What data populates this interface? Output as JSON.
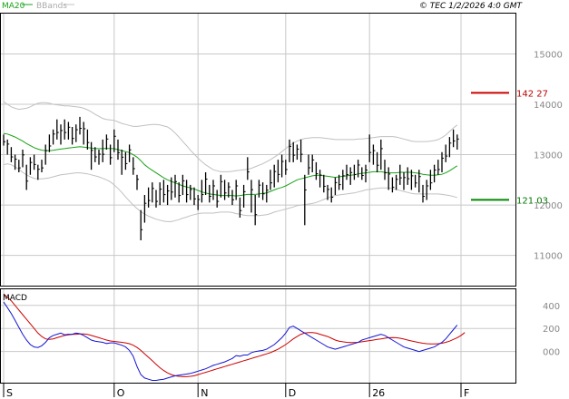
{
  "header": {
    "legend_ma": "MA20",
    "legend_bb": "BBands",
    "source": "© TEC 1/2/2026 4:0 GMT"
  },
  "colors": {
    "price": "#000000",
    "ma": "#17a317",
    "bbands": "#c0c0c0",
    "grid": "#c8c8c8",
    "resistance": "#cc0000",
    "support": "#008800",
    "macd": "#1414d2",
    "signal": "#cc0000",
    "axis_text": "#888888",
    "level_text_red": "#bb0000",
    "level_text_green": "#007700"
  },
  "macd_panel": {
    "title": "MACD"
  },
  "chart_data": [
    {
      "type": "line",
      "title": "",
      "x_tick_labels": [
        "S",
        "O",
        "N",
        "D",
        "26",
        "F"
      ],
      "x_tick_index": [
        0,
        29,
        51,
        74,
        96,
        120
      ],
      "y_ticks": [
        11000,
        12000,
        13000,
        14000,
        15000
      ],
      "y_tick_labels": [
        "11000",
        "12000",
        "13000",
        "14000",
        "15000"
      ],
      "ylim": [
        10400,
        15800
      ],
      "grid": true,
      "levels": [
        {
          "name": "resistance",
          "value": 14227,
          "label": "142 27"
        },
        {
          "name": "support",
          "value": 12103,
          "label": "121 03"
        }
      ],
      "ohlc": [
        [
          13400,
          13180
        ],
        [
          13300,
          13000
        ],
        [
          13150,
          12850
        ],
        [
          13000,
          12700
        ],
        [
          12900,
          12650
        ],
        [
          13100,
          12750
        ],
        [
          12800,
          12300
        ],
        [
          12950,
          12600
        ],
        [
          13000,
          12700
        ],
        [
          12800,
          12500
        ],
        [
          12900,
          12650
        ],
        [
          13200,
          12800
        ],
        [
          13400,
          13050
        ],
        [
          13500,
          13200
        ],
        [
          13700,
          13300
        ],
        [
          13600,
          13200
        ],
        [
          13700,
          13300
        ],
        [
          13650,
          13300
        ],
        [
          13550,
          13200
        ],
        [
          13600,
          13250
        ],
        [
          13750,
          13400
        ],
        [
          13650,
          13200
        ],
        [
          13500,
          13100
        ],
        [
          13250,
          12700
        ],
        [
          13150,
          12850
        ],
        [
          13100,
          12800
        ],
        [
          13300,
          12850
        ],
        [
          13400,
          13100
        ],
        [
          13200,
          12800
        ],
        [
          13500,
          13050
        ],
        [
          13300,
          12900
        ],
        [
          13100,
          12600
        ],
        [
          13050,
          12700
        ],
        [
          13200,
          12850
        ],
        [
          12950,
          12600
        ],
        [
          12600,
          12300
        ],
        [
          11900,
          11300
        ],
        [
          12200,
          11650
        ],
        [
          12350,
          11950
        ],
        [
          12450,
          12050
        ],
        [
          12300,
          11950
        ],
        [
          12450,
          12000
        ],
        [
          12500,
          12050
        ],
        [
          12400,
          12000
        ],
        [
          12550,
          12100
        ],
        [
          12600,
          12150
        ],
        [
          12450,
          12050
        ],
        [
          12600,
          12200
        ],
        [
          12500,
          12050
        ],
        [
          12400,
          12100
        ],
        [
          12350,
          12000
        ],
        [
          12200,
          11900
        ],
        [
          12500,
          12050
        ],
        [
          12650,
          12200
        ],
        [
          12400,
          12050
        ],
        [
          12500,
          12100
        ],
        [
          12300,
          11950
        ],
        [
          12600,
          12150
        ],
        [
          12500,
          12100
        ],
        [
          12450,
          12150
        ],
        [
          12300,
          12000
        ],
        [
          12500,
          12100
        ],
        [
          12150,
          11750
        ],
        [
          12400,
          11950
        ],
        [
          12950,
          12500
        ],
        [
          12500,
          11850
        ],
        [
          12200,
          11600
        ],
        [
          12500,
          12150
        ],
        [
          12450,
          12100
        ],
        [
          12400,
          12050
        ],
        [
          12700,
          12300
        ],
        [
          12800,
          12350
        ],
        [
          12900,
          12450
        ],
        [
          13000,
          12550
        ],
        [
          12900,
          12600
        ],
        [
          13300,
          12850
        ],
        [
          13250,
          12850
        ],
        [
          13200,
          12900
        ],
        [
          13300,
          12850
        ],
        [
          12600,
          11600
        ],
        [
          13000,
          12600
        ],
        [
          13000,
          12650
        ],
        [
          12850,
          12500
        ],
        [
          12700,
          12350
        ],
        [
          12600,
          12250
        ],
        [
          12400,
          12100
        ],
        [
          12350,
          12050
        ],
        [
          12550,
          12200
        ],
        [
          12600,
          12300
        ],
        [
          12700,
          12300
        ],
        [
          12800,
          12500
        ],
        [
          12750,
          12400
        ],
        [
          12800,
          12500
        ],
        [
          12900,
          12550
        ],
        [
          12750,
          12500
        ],
        [
          12800,
          12450
        ],
        [
          13400,
          12850
        ],
        [
          13200,
          12800
        ],
        [
          13050,
          12650
        ],
        [
          13300,
          12700
        ],
        [
          12900,
          12500
        ],
        [
          12750,
          12300
        ],
        [
          12550,
          12250
        ],
        [
          12600,
          12300
        ],
        [
          12800,
          12400
        ],
        [
          12650,
          12300
        ],
        [
          12750,
          12400
        ],
        [
          12700,
          12300
        ],
        [
          12600,
          12350
        ],
        [
          12700,
          12250
        ],
        [
          12400,
          12050
        ],
        [
          12500,
          12100
        ],
        [
          12700,
          12300
        ],
        [
          12800,
          12450
        ],
        [
          12900,
          12600
        ],
        [
          13050,
          12650
        ],
        [
          13200,
          12850
        ],
        [
          13350,
          12950
        ],
        [
          13500,
          13150
        ],
        [
          13400,
          13100
        ]
      ],
      "ma20": [
        13420,
        13410,
        13380,
        13350,
        13310,
        13270,
        13220,
        13180,
        13140,
        13110,
        13090,
        13080,
        13080,
        13085,
        13100,
        13110,
        13120,
        13130,
        13140,
        13150,
        13160,
        13150,
        13140,
        13130,
        13120,
        13120,
        13120,
        13125,
        13120,
        13120,
        13100,
        13080,
        13060,
        13040,
        13000,
        12950,
        12880,
        12800,
        12740,
        12690,
        12640,
        12590,
        12540,
        12500,
        12470,
        12440,
        12410,
        12380,
        12360,
        12340,
        12320,
        12290,
        12260,
        12240,
        12220,
        12210,
        12200,
        12190,
        12190,
        12190,
        12190,
        12180,
        12190,
        12200,
        12210,
        12210,
        12210,
        12220,
        12230,
        12240,
        12270,
        12300,
        12330,
        12350,
        12380,
        12420,
        12460,
        12500,
        12520,
        12540,
        12560,
        12580,
        12590,
        12590,
        12580,
        12570,
        12560,
        12550,
        12560,
        12570,
        12580,
        12590,
        12600,
        12620,
        12630,
        12640,
        12650,
        12660,
        12660,
        12660,
        12650,
        12640,
        12640,
        12640,
        12650,
        12650,
        12650,
        12650,
        12640,
        12630,
        12610,
        12600,
        12590,
        12590,
        12600,
        12610,
        12640,
        12680,
        12730,
        12780
      ],
      "bb_upper": [
        14050,
        14000,
        13950,
        13920,
        13900,
        13910,
        13920,
        13950,
        13990,
        14020,
        14030,
        14030,
        14020,
        14000,
        13990,
        13980,
        13970,
        13970,
        13960,
        13950,
        13940,
        13920,
        13890,
        13850,
        13800,
        13760,
        13720,
        13700,
        13690,
        13680,
        13650,
        13620,
        13600,
        13580,
        13560,
        13560,
        13570,
        13580,
        13590,
        13600,
        13600,
        13590,
        13570,
        13550,
        13500,
        13430,
        13350,
        13260,
        13180,
        13090,
        13010,
        12930,
        12860,
        12800,
        12750,
        12700,
        12680,
        12660,
        12660,
        12660,
        12670,
        12680,
        12690,
        12700,
        12710,
        12730,
        12760,
        12790,
        12820,
        12860,
        12900,
        12950,
        13000,
        13060,
        13120,
        13180,
        13230,
        13270,
        13300,
        13320,
        13330,
        13340,
        13340,
        13340,
        13330,
        13320,
        13310,
        13300,
        13300,
        13300,
        13300,
        13300,
        13300,
        13310,
        13310,
        13320,
        13330,
        13340,
        13350,
        13360,
        13360,
        13360,
        13360,
        13350,
        13330,
        13310,
        13290,
        13270,
        13260,
        13260,
        13260,
        13260,
        13270,
        13280,
        13300,
        13340,
        13390,
        13460,
        13530,
        13590
      ],
      "bb_lower": [
        12800,
        12820,
        12800,
        12760,
        12710,
        12650,
        12600,
        12560,
        12530,
        12520,
        12520,
        12530,
        12540,
        12560,
        12580,
        12600,
        12610,
        12620,
        12630,
        12640,
        12640,
        12630,
        12620,
        12600,
        12580,
        12560,
        12530,
        12500,
        12460,
        12400,
        12330,
        12250,
        12160,
        12080,
        12000,
        11930,
        11870,
        11820,
        11780,
        11750,
        11720,
        11700,
        11680,
        11670,
        11670,
        11690,
        11710,
        11740,
        11760,
        11790,
        11810,
        11830,
        11840,
        11840,
        11840,
        11840,
        11850,
        11860,
        11860,
        11860,
        11850,
        11830,
        11820,
        11800,
        11790,
        11790,
        11790,
        11790,
        11800,
        11810,
        11830,
        11860,
        11880,
        11900,
        11920,
        11940,
        11960,
        11990,
        12000,
        12010,
        12020,
        12030,
        12050,
        12080,
        12110,
        12140,
        12170,
        12190,
        12200,
        12210,
        12220,
        12230,
        12240,
        12260,
        12280,
        12300,
        12310,
        12320,
        12330,
        12340,
        12340,
        12340,
        12330,
        12310,
        12290,
        12270,
        12250,
        12230,
        12220,
        12220,
        12220,
        12220,
        12220,
        12220,
        12220,
        12210,
        12200,
        12190,
        12170,
        12150
      ]
    },
    {
      "type": "line",
      "title": "MACD",
      "y_ticks": [
        0,
        200,
        400
      ],
      "y_tick_labels": [
        "000",
        "200",
        "400"
      ],
      "ylim": [
        -270,
        540
      ],
      "grid": true,
      "macd": [
        430,
        380,
        330,
        270,
        210,
        150,
        100,
        60,
        40,
        35,
        50,
        80,
        120,
        140,
        150,
        160,
        145,
        150,
        150,
        160,
        155,
        140,
        120,
        100,
        90,
        85,
        80,
        70,
        75,
        75,
        65,
        55,
        40,
        10,
        -40,
        -130,
        -200,
        -230,
        -240,
        -250,
        -250,
        -245,
        -240,
        -230,
        -220,
        -210,
        -205,
        -200,
        -195,
        -190,
        -180,
        -170,
        -160,
        -150,
        -135,
        -120,
        -110,
        -100,
        -90,
        -75,
        -60,
        -35,
        -40,
        -30,
        -30,
        -10,
        0,
        5,
        10,
        20,
        40,
        60,
        90,
        120,
        160,
        210,
        220,
        200,
        180,
        160,
        140,
        120,
        100,
        80,
        60,
        40,
        30,
        20,
        30,
        40,
        50,
        60,
        70,
        80,
        100,
        110,
        120,
        130,
        140,
        150,
        140,
        120,
        100,
        80,
        60,
        40,
        30,
        20,
        10,
        0,
        10,
        20,
        30,
        40,
        60,
        80,
        110,
        150,
        190,
        230
      ],
      "signal": [
        500,
        470,
        440,
        400,
        360,
        320,
        280,
        240,
        200,
        160,
        130,
        110,
        105,
        110,
        120,
        130,
        140,
        145,
        148,
        150,
        152,
        152,
        148,
        140,
        130,
        120,
        110,
        100,
        92,
        88,
        84,
        80,
        75,
        68,
        55,
        35,
        10,
        -20,
        -50,
        -80,
        -110,
        -140,
        -165,
        -185,
        -200,
        -210,
        -215,
        -218,
        -218,
        -215,
        -210,
        -200,
        -190,
        -180,
        -170,
        -160,
        -150,
        -140,
        -130,
        -120,
        -110,
        -100,
        -90,
        -80,
        -70,
        -60,
        -50,
        -40,
        -30,
        -20,
        -10,
        5,
        20,
        40,
        60,
        85,
        110,
        130,
        150,
        160,
        165,
        165,
        160,
        150,
        140,
        130,
        115,
        100,
        90,
        85,
        80,
        78,
        78,
        80,
        85,
        90,
        95,
        100,
        105,
        110,
        115,
        120,
        122,
        120,
        115,
        108,
        100,
        92,
        85,
        78,
        72,
        68,
        66,
        66,
        68,
        72,
        80,
        90,
        105,
        120,
        140,
        165
      ]
    }
  ]
}
